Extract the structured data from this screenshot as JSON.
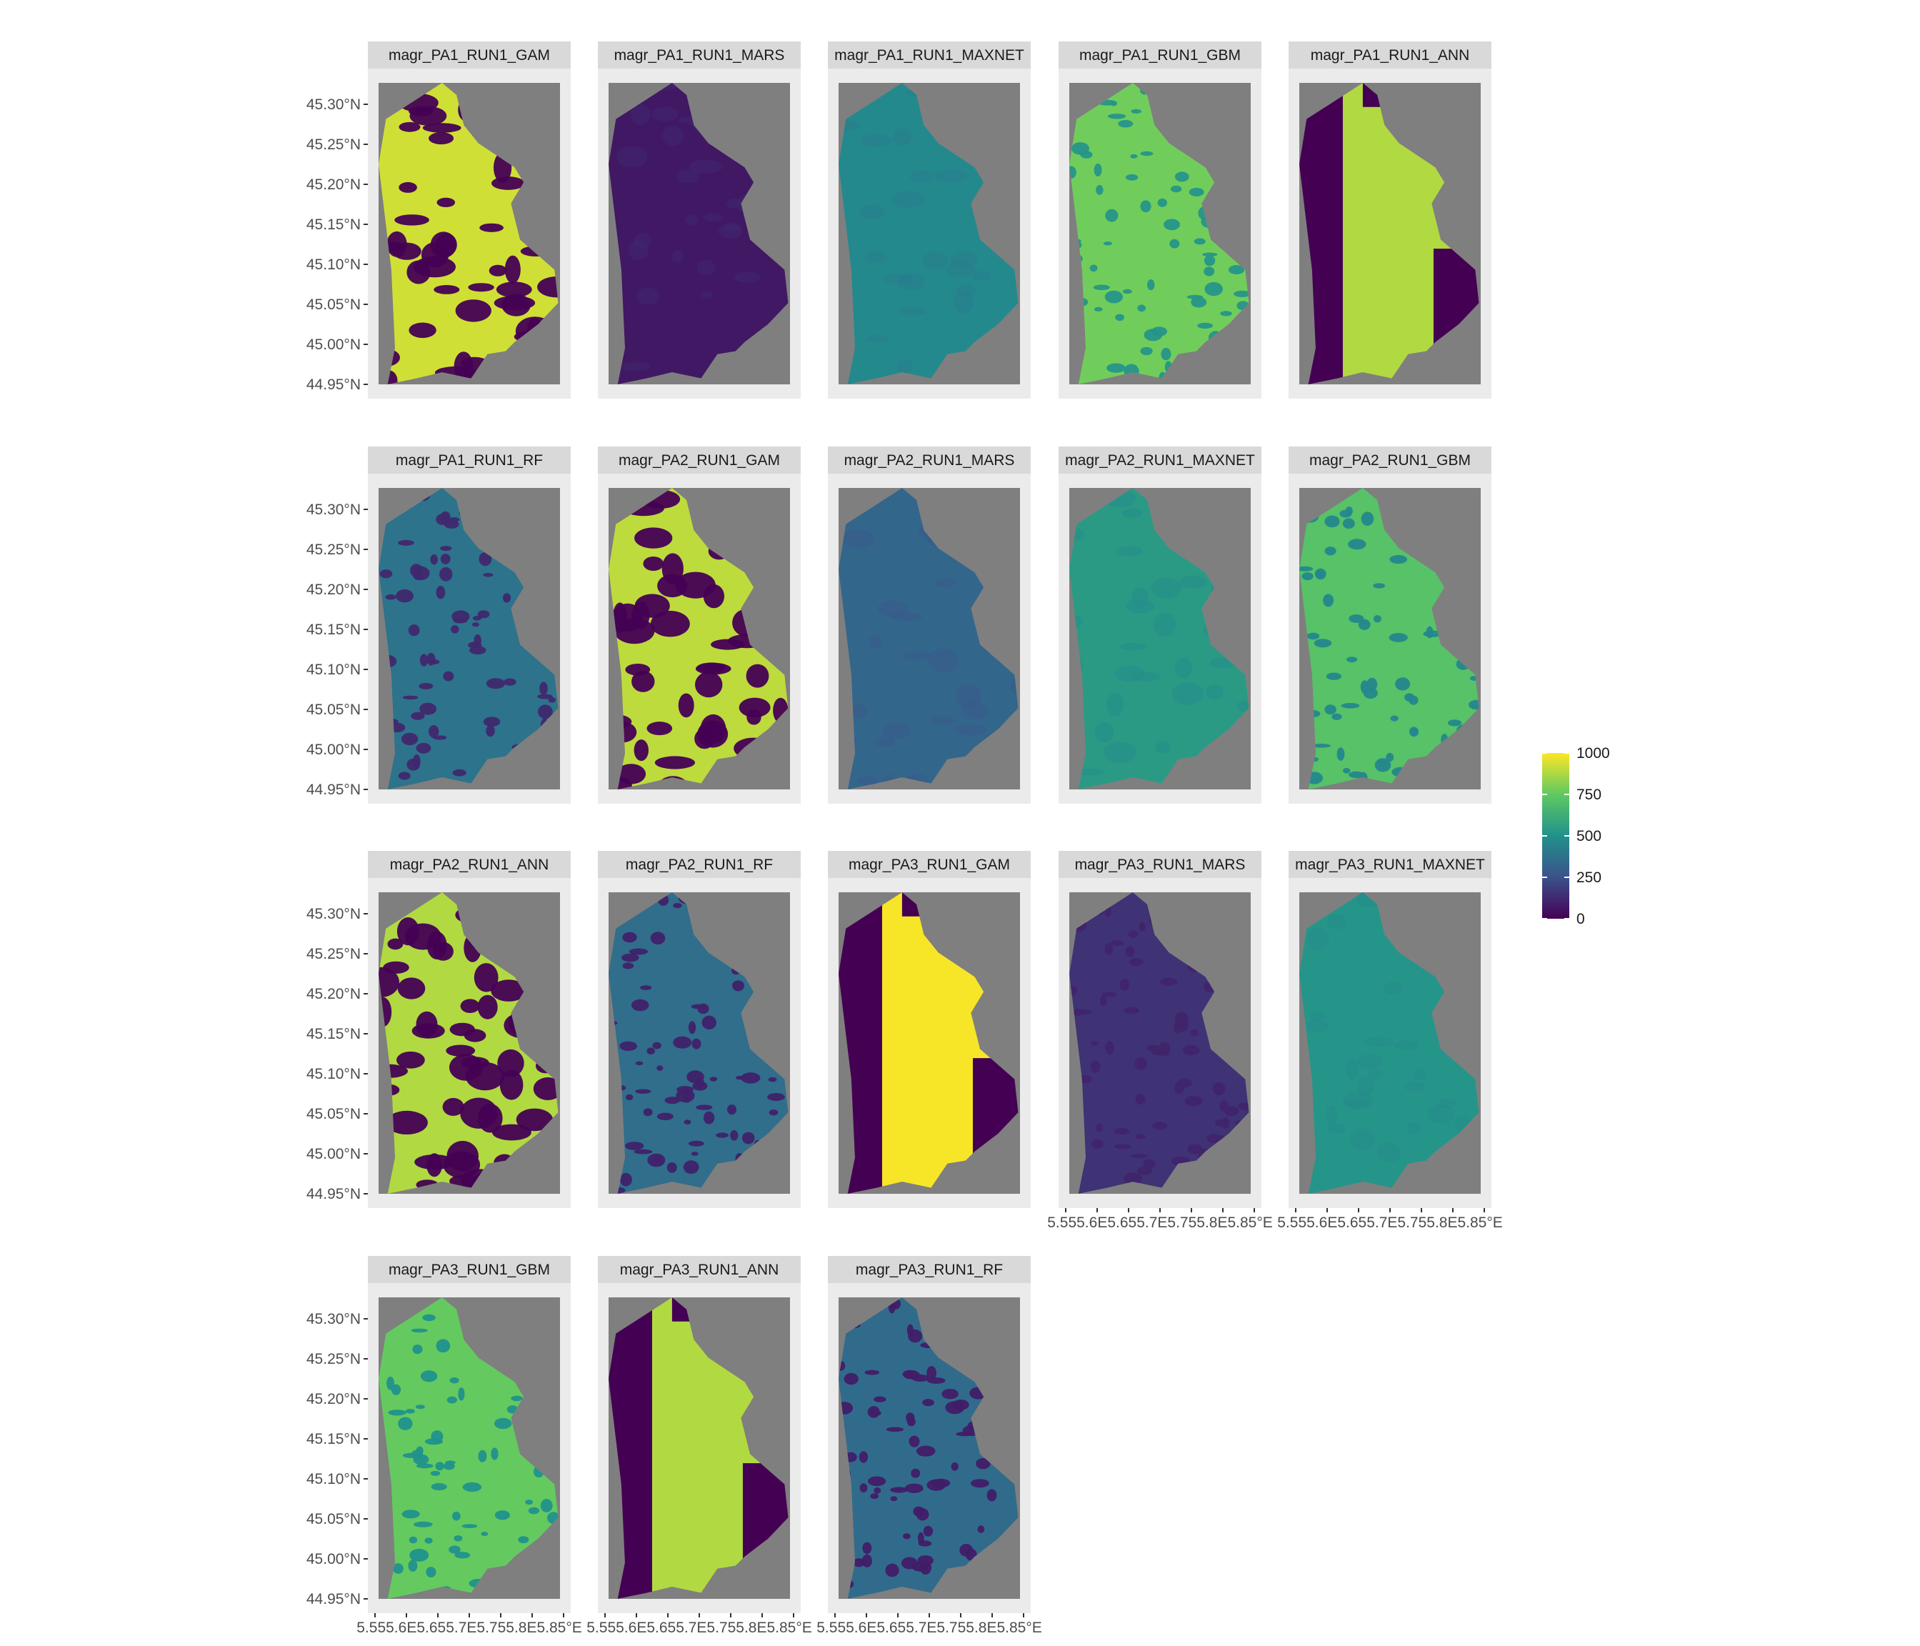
{
  "chart_data": {
    "type": "heatmap",
    "layout": "facet_wrap",
    "ncol": 5,
    "panels": [
      {
        "label": "magr_PA1_RUN1_GAM",
        "style": "binary",
        "mean": 930
      },
      {
        "label": "magr_PA1_RUN1_MARS",
        "style": "smooth",
        "mean": 70
      },
      {
        "label": "magr_PA1_RUN1_MAXNET",
        "style": "smooth",
        "mean": 470
      },
      {
        "label": "magr_PA1_RUN1_GBM",
        "style": "patchy",
        "mean": 780
      },
      {
        "label": "magr_PA1_RUN1_ANN",
        "style": "ann",
        "mean": 880
      },
      {
        "label": "magr_PA1_RUN1_RF",
        "style": "patchy",
        "mean": 380
      },
      {
        "label": "magr_PA2_RUN1_GAM",
        "style": "binary",
        "mean": 900
      },
      {
        "label": "magr_PA2_RUN1_MARS",
        "style": "smooth",
        "mean": 330
      },
      {
        "label": "magr_PA2_RUN1_MAXNET",
        "style": "smooth",
        "mean": 540
      },
      {
        "label": "magr_PA2_RUN1_GBM",
        "style": "patchy",
        "mean": 720
      },
      {
        "label": "magr_PA2_RUN1_ANN",
        "style": "binary",
        "mean": 880
      },
      {
        "label": "magr_PA2_RUN1_RF",
        "style": "patchy",
        "mean": 360
      },
      {
        "label": "magr_PA3_RUN1_GAM",
        "style": "ann",
        "mean": 990
      },
      {
        "label": "magr_PA3_RUN1_MARS",
        "style": "patchy",
        "mean": 150
      },
      {
        "label": "magr_PA3_RUN1_MAXNET",
        "style": "smooth",
        "mean": 520
      },
      {
        "label": "magr_PA3_RUN1_GBM",
        "style": "patchy",
        "mean": 760
      },
      {
        "label": "magr_PA3_RUN1_ANN",
        "style": "ann",
        "mean": 880
      },
      {
        "label": "magr_PA3_RUN1_RF",
        "style": "patchy",
        "mean": 350
      }
    ],
    "y_ticks": [
      "45.30°N",
      "45.25°N",
      "45.20°N",
      "45.15°N",
      "45.10°N",
      "45.05°N",
      "45.00°N",
      "44.95°N"
    ],
    "x_tick_text": "5.555.6E5.655.7E5.755.8E5.85°E",
    "ylim": [
      44.95,
      45.32
    ],
    "xlim": [
      5.55,
      5.85
    ],
    "legend": {
      "labels": [
        "1000",
        "750",
        "500",
        "250",
        "0"
      ],
      "values": [
        1000,
        750,
        500,
        250,
        0
      ],
      "range": [
        0,
        1000
      ],
      "placement": "right",
      "colormap": "viridis"
    },
    "grid": true,
    "colors": {
      "panel_background": "#7f7f7f",
      "strip_background": "#d9d9d9",
      "grid": "#ebebeb",
      "viridis": [
        "#440154",
        "#3b528b",
        "#21918c",
        "#5ec962",
        "#fde725"
      ]
    }
  }
}
